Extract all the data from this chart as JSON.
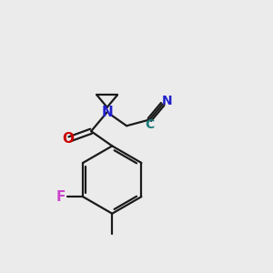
{
  "background_color": "#ebebeb",
  "bond_color": "#1a1a1a",
  "O_color": "#cc0000",
  "N_color": "#2020cc",
  "F_color": "#cc44cc",
  "C_color": "#1a7a7a",
  "N_label": "N",
  "O_label": "O",
  "F_label": "F",
  "C_label": "C",
  "N_label2": "N",
  "figsize": [
    3.0,
    3.0
  ],
  "dpi": 100,
  "bond_lw": 1.6
}
